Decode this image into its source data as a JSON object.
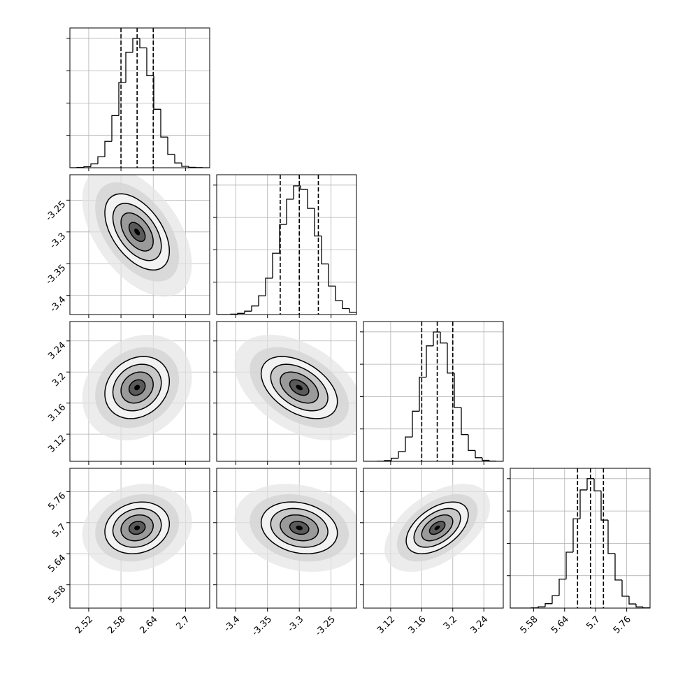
{
  "chart_data": {
    "type": "corner",
    "color": "#000000",
    "grid": true,
    "contour_levels": [
      0.5,
      1,
      1.5,
      2
    ],
    "hist_ylim": [
      0,
      1080
    ],
    "hist_yticks": [
      250,
      500,
      750,
      1000
    ],
    "parameters": [
      {
        "xlim": [
          2.485,
          2.745
        ],
        "ticks": [
          2.52,
          2.58,
          2.64,
          2.7
        ],
        "mean": 2.61,
        "sd": 0.03,
        "quantiles": [
          2.58,
          2.61,
          2.64
        ],
        "bins": [
          2.485,
          2.498,
          2.511,
          2.524,
          2.537,
          2.55,
          2.563,
          2.576,
          2.589,
          2.602,
          2.615,
          2.628,
          2.641,
          2.654,
          2.667,
          2.68,
          2.693,
          2.706,
          2.719,
          2.732,
          2.745
        ],
        "counts": [
          0,
          2,
          8,
          30,
          85,
          204,
          403,
          659,
          892,
          999,
          926,
          711,
          452,
          237,
          103,
          37,
          11,
          3,
          1,
          0
        ]
      },
      {
        "xlim": [
          -3.43,
          -3.21
        ],
        "ticks": [
          -3.4,
          -3.35,
          -3.3,
          -3.25
        ],
        "mean": -3.3,
        "sd": 0.03,
        "quantiles": [
          -3.33,
          -3.3,
          -3.27
        ],
        "bins": [
          -3.43,
          -3.419,
          -3.408,
          -3.397,
          -3.386,
          -3.375,
          -3.364,
          -3.353,
          -3.342,
          -3.331,
          -3.32,
          -3.309,
          -3.298,
          -3.287,
          -3.276,
          -3.265,
          -3.254,
          -3.243,
          -3.232,
          -3.221,
          -3.21
        ],
        "counts": [
          0,
          0,
          3,
          9,
          26,
          66,
          145,
          281,
          474,
          696,
          891,
          994,
          967,
          820,
          607,
          391,
          220,
          108,
          46,
          17
        ]
      },
      {
        "xlim": [
          3.085,
          3.265
        ],
        "ticks": [
          3.12,
          3.16,
          3.2,
          3.24
        ],
        "mean": 3.18,
        "sd": 0.02,
        "quantiles": [
          3.16,
          3.18,
          3.2
        ],
        "bins": [
          3.085,
          3.094,
          3.103,
          3.112,
          3.121,
          3.13,
          3.139,
          3.148,
          3.157,
          3.166,
          3.175,
          3.184,
          3.193,
          3.202,
          3.211,
          3.22,
          3.229,
          3.238,
          3.247,
          3.256,
          3.265
        ],
        "counts": [
          0,
          0,
          1,
          6,
          24,
          74,
          188,
          387,
          650,
          892,
          999,
          914,
          682,
          416,
          207,
          84,
          28,
          8,
          2,
          0
        ]
      },
      {
        "xlim": [
          5.535,
          5.805
        ],
        "ticks": [
          5.58,
          5.64,
          5.7,
          5.76
        ],
        "mean": 5.69,
        "sd": 0.025,
        "quantiles": [
          5.665,
          5.69,
          5.715
        ],
        "bins": [
          5.535,
          5.5485,
          5.562,
          5.5755,
          5.589,
          5.6025,
          5.616,
          5.6295,
          5.643,
          5.6565,
          5.67,
          5.6835,
          5.697,
          5.7105,
          5.724,
          5.7375,
          5.751,
          5.7645,
          5.778,
          5.7915,
          5.805
        ],
        "counts": [
          0,
          0,
          0,
          2,
          10,
          34,
          96,
          224,
          432,
          690,
          913,
          1000,
          906,
          680,
          422,
          217,
          92,
          32,
          9,
          2
        ]
      }
    ],
    "correlations": [
      -0.5,
      0.2,
      -0.45,
      0.15,
      -0.2,
      0.5
    ]
  }
}
